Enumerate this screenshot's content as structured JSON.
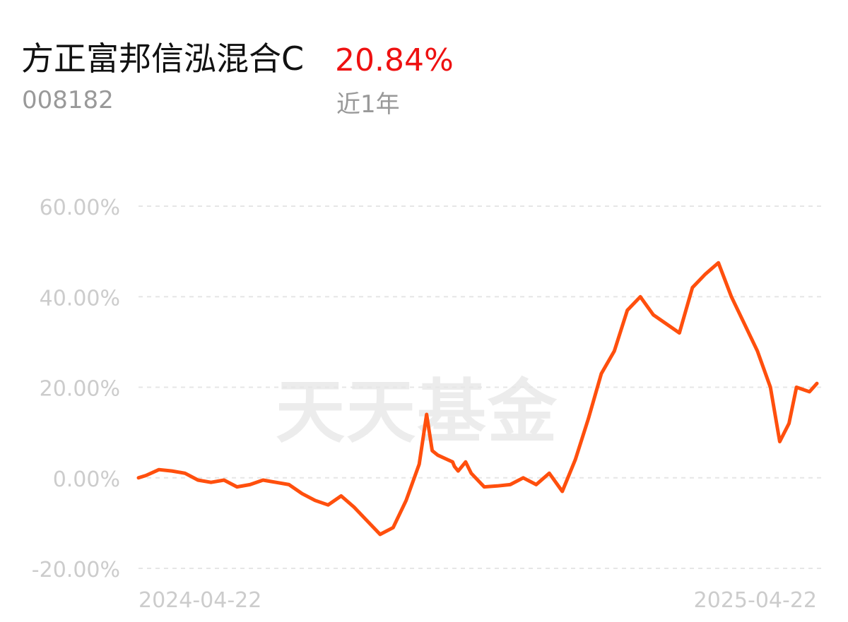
{
  "header": {
    "fund_name": "方正富邦信泓混合C",
    "fund_code": "008182",
    "return_value": "20.84%",
    "period_label": "近1年"
  },
  "watermark": "天天基金",
  "colors": {
    "line": "#ff4f0d",
    "return_text": "#ee1111",
    "grid": "#e6e6e6",
    "axis_text": "#cccccc"
  },
  "chart_data": {
    "type": "line",
    "ylim": [
      -20,
      60
    ],
    "y_ticks": [
      {
        "value": 60,
        "label": "60.00%"
      },
      {
        "value": 40,
        "label": "40.00%"
      },
      {
        "value": 20,
        "label": "20.00%"
      },
      {
        "value": 0,
        "label": "0.00%"
      },
      {
        "value": -20,
        "label": "-20.00%"
      }
    ],
    "x_labels": [
      "2024-04-22",
      "2025-04-22"
    ],
    "grid": true,
    "series": [
      {
        "x": [
          "2024-04-22",
          "2024-04-26",
          "2024-05-03",
          "2024-05-10",
          "2024-05-17",
          "2024-05-24",
          "2024-05-31",
          "2024-06-07",
          "2024-06-14",
          "2024-06-21",
          "2024-06-28",
          "2024-07-05",
          "2024-07-12",
          "2024-07-19",
          "2024-07-26",
          "2024-08-02",
          "2024-08-09",
          "2024-08-16",
          "2024-08-23",
          "2024-08-30",
          "2024-09-06",
          "2024-09-13",
          "2024-09-20",
          "2024-09-24",
          "2024-09-27",
          "2024-09-30",
          "2024-10-08",
          "2024-10-09",
          "2024-10-11",
          "2024-10-15",
          "2024-10-18",
          "2024-10-25",
          "2024-11-01",
          "2024-11-08",
          "2024-11-15",
          "2024-11-22",
          "2024-11-29",
          "2024-12-06",
          "2024-12-13",
          "2024-12-20",
          "2024-12-27",
          "2025-01-03",
          "2025-01-10",
          "2025-01-17",
          "2025-01-24",
          "2025-02-07",
          "2025-02-14",
          "2025-02-21",
          "2025-02-28",
          "2025-03-07",
          "2025-03-14",
          "2025-03-21",
          "2025-03-28",
          "2025-04-02",
          "2025-04-07",
          "2025-04-11",
          "2025-04-18",
          "2025-04-22"
        ],
        "values": [
          0.0,
          0.5,
          1.8,
          1.5,
          1.0,
          -0.5,
          -1.0,
          -0.5,
          -2.0,
          -1.5,
          -0.5,
          -1.0,
          -1.5,
          -3.5,
          -5.0,
          -6.0,
          -4.0,
          -6.5,
          -9.5,
          -12.5,
          -11.0,
          -5.0,
          3.0,
          14.0,
          6.0,
          5.0,
          3.5,
          2.5,
          1.5,
          3.5,
          1.0,
          -2.0,
          -1.8,
          -1.5,
          0.0,
          -1.5,
          1.0,
          -3.0,
          4.0,
          13.0,
          23.0,
          28.0,
          37.0,
          40.0,
          36.0,
          32.0,
          42.0,
          45.0,
          47.5,
          40.0,
          34.0,
          28.0,
          20.0,
          8.0,
          12.0,
          20.0,
          19.0,
          20.84
        ]
      }
    ]
  }
}
